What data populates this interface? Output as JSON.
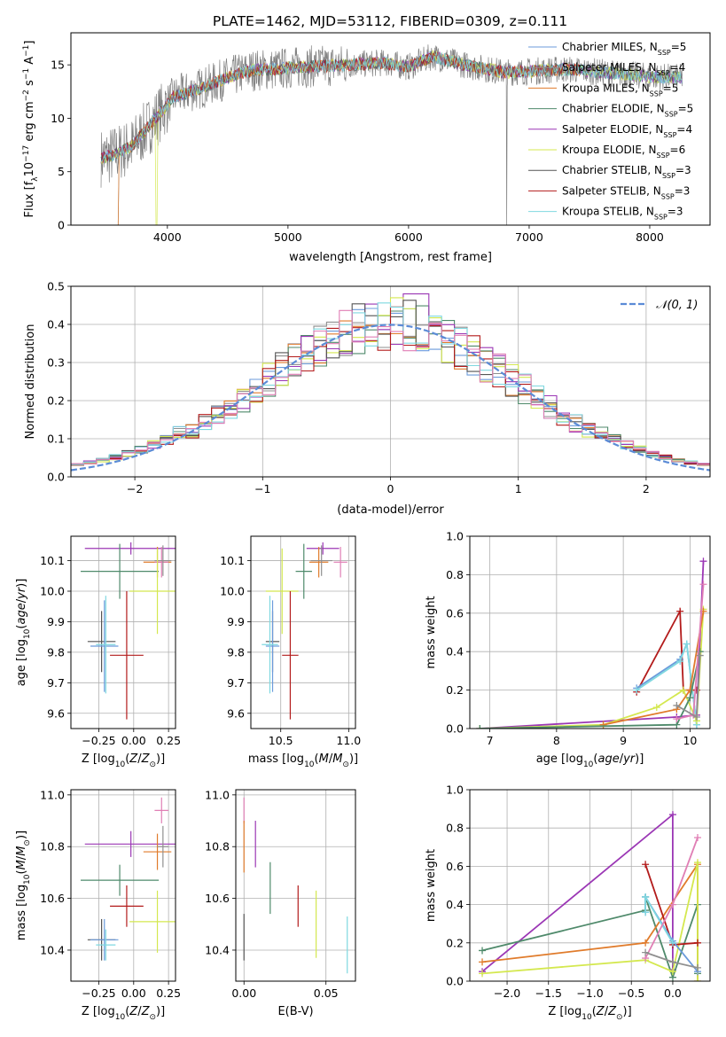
{
  "figure": {
    "title": "PLATE=1462, MJD=53112, FIBERID=0309, z=0.111"
  },
  "colors": {
    "Chabrier MILES": "#6b9bdb",
    "Salpeter MILES": "#8f8f8f",
    "Kroupa MILES": "#e07b2b",
    "Chabrier ELODIE": "#4f8a6b",
    "Salpeter ELODIE": "#9b37b5",
    "Kroupa ELODIE": "#d4e84f",
    "Chabrier STELIB": "#555555",
    "Salpeter STELIB": "#b31b1b",
    "Kroupa STELIB": "#7fd8e0",
    "pink": "#e07fb5",
    "data": "#808080",
    "gauss": "#5b8bd6"
  },
  "chart_data": [
    {
      "id": "spectrum",
      "type": "line",
      "xlabel": "wavelength [Angstrom, rest frame]",
      "ylabel": "Flux [f_λ10^-17 erg cm^-2 s^-1 A^-1]",
      "xlim": [
        3200,
        8500
      ],
      "ylim": [
        0,
        18
      ],
      "xticks": [
        4000,
        5000,
        6000,
        7000,
        8000
      ],
      "yticks": [
        0,
        5,
        10,
        15
      ],
      "continuum": {
        "x": [
          3450,
          3550,
          3700,
          3850,
          3950,
          4050,
          4300,
          4500,
          4700,
          4900,
          5100,
          5300,
          5500,
          5800,
          6000,
          6200,
          6500,
          6800,
          7000,
          7300,
          7600,
          8000,
          8300
        ],
        "y": [
          6.3,
          6.6,
          7.3,
          9.3,
          10.6,
          12.0,
          12.9,
          13.8,
          14.5,
          14.6,
          14.8,
          14.9,
          15.0,
          15.2,
          14.8,
          15.8,
          14.9,
          14.3,
          14.4,
          14.6,
          14.3,
          13.9,
          13.8
        ]
      },
      "legend_position": "upper right",
      "legend": [
        {
          "name": "Chabrier MILES",
          "nssp": "5"
        },
        {
          "name": "Salpeter MILES",
          "nssp": "4"
        },
        {
          "name": "Kroupa MILES",
          "nssp": "5"
        },
        {
          "name": "Chabrier ELODIE",
          "nssp": "5"
        },
        {
          "name": "Salpeter ELODIE",
          "nssp": "4"
        },
        {
          "name": "Kroupa ELODIE",
          "nssp": "6"
        },
        {
          "name": "Chabrier STELIB",
          "nssp": "3"
        },
        {
          "name": "Salpeter STELIB",
          "nssp": "3"
        },
        {
          "name": "Kroupa STELIB",
          "nssp": "3"
        }
      ]
    },
    {
      "id": "residuals",
      "type": "line",
      "xlabel": "(data-model)/error",
      "ylabel": "Normed distribution",
      "xlim": [
        -2.5,
        2.5
      ],
      "ylim": [
        0,
        0.5
      ],
      "xticks": [
        -2,
        -1,
        0,
        1,
        2
      ],
      "yticks": [
        0.0,
        0.1,
        0.2,
        0.3,
        0.4,
        0.5
      ],
      "grid": true,
      "bin_width": 0.1,
      "gauss_label": "𝒩(0, 1)",
      "legend_position": "upper right"
    },
    {
      "id": "age_vs_Z",
      "type": "scatter",
      "xlabel": "Z [log10(Z/Z⊙)]",
      "ylabel": "age  [log10(age/yr)]",
      "xlim": [
        -0.45,
        0.3
      ],
      "ylim": [
        9.55,
        10.18
      ],
      "xticks": [
        -0.25,
        0.0,
        0.25
      ],
      "yticks": [
        9.6,
        9.7,
        9.8,
        9.9,
        10.0,
        10.1
      ],
      "grid": true,
      "points": [
        {
          "series": "Salpeter ELODIE",
          "x": -0.02,
          "y": 10.14,
          "xerr": 0.33,
          "yerr": 0.02
        },
        {
          "series": "Chabrier ELODIE",
          "x": -0.1,
          "y": 10.065,
          "xerr": 0.28,
          "yerr": 0.09
        },
        {
          "series": "Kroupa MILES",
          "x": 0.17,
          "y": 10.095,
          "xerr": 0.1,
          "yerr": 0.05
        },
        {
          "series": "pink",
          "x": 0.2,
          "y": 10.095,
          "xerr": 0.05,
          "yerr": 0.05
        },
        {
          "series": "Salpeter MILES",
          "x": 0.21,
          "y": 10.1,
          "xerr": 0.06,
          "yerr": 0.05
        },
        {
          "series": "Kroupa ELODIE",
          "x": 0.17,
          "y": 10.0,
          "xerr": 0.2,
          "yerr": 0.14
        },
        {
          "series": "Salpeter STELIB",
          "x": -0.05,
          "y": 9.79,
          "xerr": 0.12,
          "yerr": 0.21
        },
        {
          "series": "Chabrier STELIB",
          "x": -0.23,
          "y": 9.835,
          "xerr": 0.1,
          "yerr": 0.1
        },
        {
          "series": "Chabrier MILES",
          "x": -0.21,
          "y": 9.82,
          "xerr": 0.1,
          "yerr": 0.15
        },
        {
          "series": "Kroupa STELIB",
          "x": -0.2,
          "y": 9.825,
          "xerr": 0.07,
          "yerr": 0.16
        }
      ]
    },
    {
      "id": "age_vs_mass",
      "type": "scatter",
      "xlabel": "mass [log10(M/M⊙)]",
      "ylabel": "",
      "xlim": [
        10.28,
        11.05
      ],
      "ylim": [
        9.55,
        10.18
      ],
      "xticks": [
        10.5,
        11.0
      ],
      "yticks": [
        9.6,
        9.7,
        9.8,
        9.9,
        10.0,
        10.1
      ],
      "grid": true,
      "points": [
        {
          "series": "Salpeter ELODIE",
          "x": 10.81,
          "y": 10.14,
          "xerr": 0.12,
          "yerr": 0.02
        },
        {
          "series": "Chabrier ELODIE",
          "x": 10.67,
          "y": 10.065,
          "xerr": 0.06,
          "yerr": 0.09
        },
        {
          "series": "Kroupa MILES",
          "x": 10.78,
          "y": 10.095,
          "xerr": 0.07,
          "yerr": 0.05
        },
        {
          "series": "pink",
          "x": 10.94,
          "y": 10.095,
          "xerr": 0.05,
          "yerr": 0.05
        },
        {
          "series": "Salpeter MILES",
          "x": 10.8,
          "y": 10.1,
          "xerr": 0.08,
          "yerr": 0.05
        },
        {
          "series": "Kroupa ELODIE",
          "x": 10.51,
          "y": 10.0,
          "xerr": 0.12,
          "yerr": 0.14
        },
        {
          "series": "Salpeter STELIB",
          "x": 10.57,
          "y": 9.79,
          "xerr": 0.06,
          "yerr": 0.21
        },
        {
          "series": "Chabrier STELIB",
          "x": 10.44,
          "y": 9.835,
          "xerr": 0.05,
          "yerr": 0.1
        },
        {
          "series": "Chabrier MILES",
          "x": 10.44,
          "y": 9.82,
          "xerr": 0.05,
          "yerr": 0.15
        },
        {
          "series": "Kroupa STELIB",
          "x": 10.42,
          "y": 9.825,
          "xerr": 0.06,
          "yerr": 0.16
        }
      ]
    },
    {
      "id": "weight_vs_age",
      "type": "line",
      "xlabel": "age  [log10(age/yr)]",
      "ylabel": "mass weight",
      "xlim": [
        6.7,
        10.3
      ],
      "ylim": [
        0,
        1.0
      ],
      "xticks": [
        7,
        8,
        9,
        10
      ],
      "yticks": [
        0.0,
        0.2,
        0.4,
        0.6,
        0.8,
        1.0
      ],
      "grid": true,
      "series": [
        {
          "name": "Salpeter STELIB",
          "x": [
            9.2,
            9.85,
            9.9,
            10.1
          ],
          "y": [
            0.19,
            0.61,
            0.2,
            0.2
          ]
        },
        {
          "name": "Chabrier MILES",
          "x": [
            9.2,
            9.85,
            9.95,
            10.1
          ],
          "y": [
            0.21,
            0.36,
            0.44,
            0.02
          ]
        },
        {
          "name": "Kroupa STELIB",
          "x": [
            9.2,
            9.85,
            9.95,
            10.1
          ],
          "y": [
            0.2,
            0.35,
            0.44,
            0.02
          ]
        },
        {
          "name": "Salpeter ELODIE",
          "x": [
            6.85,
            9.8,
            10.1,
            10.2
          ],
          "y": [
            0.0,
            0.06,
            0.07,
            0.87
          ]
        },
        {
          "name": "Kroupa ELODIE",
          "x": [
            6.85,
            8.7,
            9.5,
            9.9,
            10.1,
            10.2
          ],
          "y": [
            0.0,
            0.02,
            0.11,
            0.2,
            0.04,
            0.62
          ]
        },
        {
          "name": "Kroupa MILES",
          "x": [
            8.7,
            9.8,
            10.0,
            10.2
          ],
          "y": [
            0.02,
            0.1,
            0.2,
            0.61
          ]
        },
        {
          "name": "Chabrier ELODIE",
          "x": [
            6.85,
            9.8,
            10.0,
            10.15
          ],
          "y": [
            0.0,
            0.02,
            0.16,
            0.4
          ]
        },
        {
          "name": "pink",
          "x": [
            9.8,
            10.05,
            10.2
          ],
          "y": [
            0.05,
            0.07,
            0.75
          ]
        },
        {
          "name": "Salpeter MILES",
          "x": [
            9.8,
            10.1,
            10.15
          ],
          "y": [
            0.12,
            0.06,
            0.38
          ]
        }
      ]
    },
    {
      "id": "mass_vs_Z",
      "type": "scatter",
      "xlabel": "Z [log10(Z/Z⊙)]",
      "ylabel": "mass [log10(M/M⊙)]",
      "xlim": [
        -0.45,
        0.3
      ],
      "ylim": [
        10.28,
        11.02
      ],
      "xticks": [
        -0.25,
        0.0,
        0.25
      ],
      "yticks": [
        10.4,
        10.6,
        10.8,
        11.0
      ],
      "grid": true,
      "points": [
        {
          "series": "pink",
          "x": 0.2,
          "y": 10.94,
          "xerr": 0.05,
          "yerr": 0.05
        },
        {
          "series": "Salpeter ELODIE",
          "x": -0.02,
          "y": 10.81,
          "xerr": 0.33,
          "yerr": 0.05
        },
        {
          "series": "Kroupa MILES",
          "x": 0.17,
          "y": 10.78,
          "xerr": 0.1,
          "yerr": 0.07
        },
        {
          "series": "Salpeter MILES",
          "x": 0.21,
          "y": 10.8,
          "xerr": 0.04,
          "yerr": 0.08
        },
        {
          "series": "Chabrier ELODIE",
          "x": -0.1,
          "y": 10.67,
          "xerr": 0.28,
          "yerr": 0.06
        },
        {
          "series": "Salpeter STELIB",
          "x": -0.05,
          "y": 10.57,
          "xerr": 0.12,
          "yerr": 0.08
        },
        {
          "series": "Kroupa ELODIE",
          "x": 0.17,
          "y": 10.51,
          "xerr": 0.2,
          "yerr": 0.12
        },
        {
          "series": "Chabrier STELIB",
          "x": -0.23,
          "y": 10.44,
          "xerr": 0.1,
          "yerr": 0.08
        },
        {
          "series": "Chabrier MILES",
          "x": -0.21,
          "y": 10.44,
          "xerr": 0.1,
          "yerr": 0.08
        },
        {
          "series": "Kroupa STELIB",
          "x": -0.2,
          "y": 10.42,
          "xerr": 0.07,
          "yerr": 0.06
        }
      ]
    },
    {
      "id": "mass_vs_EBV",
      "type": "scatter",
      "xlabel": "E(B-V)",
      "ylabel": "",
      "xlim": [
        -0.005,
        0.068
      ],
      "ylim": [
        10.28,
        11.02
      ],
      "xticks": [
        0.0,
        0.05
      ],
      "yticks": [
        10.4,
        10.6,
        10.8,
        11.0
      ],
      "grid": true,
      "points": [
        {
          "series": "pink",
          "x": 0.0,
          "y": 10.94,
          "xerr": 0,
          "yerr": 0.05
        },
        {
          "series": "Kroupa MILES",
          "x": 0.0,
          "y": 10.8,
          "xerr": 0,
          "yerr": 0.1
        },
        {
          "series": "Chabrier STELIB",
          "x": 0.0,
          "y": 10.45,
          "xerr": 0,
          "yerr": 0.09
        },
        {
          "series": "Salpeter ELODIE",
          "x": 0.007,
          "y": 10.81,
          "xerr": 0,
          "yerr": 0.09
        },
        {
          "series": "Chabrier ELODIE",
          "x": 0.016,
          "y": 10.64,
          "xerr": 0,
          "yerr": 0.1
        },
        {
          "series": "Salpeter STELIB",
          "x": 0.033,
          "y": 10.57,
          "xerr": 0,
          "yerr": 0.08
        },
        {
          "series": "Kroupa ELODIE",
          "x": 0.044,
          "y": 10.5,
          "xerr": 0,
          "yerr": 0.13
        },
        {
          "series": "Kroupa STELIB",
          "x": 0.063,
          "y": 10.42,
          "xerr": 0,
          "yerr": 0.11
        }
      ]
    },
    {
      "id": "weight_vs_Z",
      "type": "line",
      "xlabel": "Z [log10(Z/Z⊙)]",
      "ylabel": "mass weight",
      "xlim": [
        -2.45,
        0.45
      ],
      "ylim": [
        0,
        1.0
      ],
      "xticks": [
        -2.0,
        -1.5,
        -1.0,
        -0.5,
        0.0
      ],
      "yticks": [
        0.0,
        0.2,
        0.4,
        0.6,
        0.8,
        1.0
      ],
      "grid": true,
      "series": [
        {
          "name": "Salpeter ELODIE",
          "x": [
            -2.3,
            0.0,
            0.0
          ],
          "y": [
            0.05,
            0.87,
            0.06
          ]
        },
        {
          "name": "Chabrier ELODIE",
          "x": [
            -2.3,
            -0.33,
            -0.33,
            0.0,
            0.3,
            0.3
          ],
          "y": [
            0.16,
            0.37,
            0.44,
            0.02,
            0.4,
            0.04
          ]
        },
        {
          "name": "Kroupa MILES",
          "x": [
            -2.3,
            -0.33,
            0.3,
            0.3
          ],
          "y": [
            0.1,
            0.2,
            0.61,
            0.0
          ]
        },
        {
          "name": "Kroupa ELODIE",
          "x": [
            -2.3,
            -0.33,
            0.0,
            0.3,
            0.3
          ],
          "y": [
            0.04,
            0.11,
            0.05,
            0.62,
            0.0
          ]
        },
        {
          "name": "Salpeter STELIB",
          "x": [
            -0.33,
            0.0,
            0.3
          ],
          "y": [
            0.61,
            0.19,
            0.2
          ]
        },
        {
          "name": "Chabrier MILES",
          "x": [
            -0.33,
            -0.33,
            0.0,
            0.3
          ],
          "y": [
            0.36,
            0.44,
            0.21,
            0.05
          ]
        },
        {
          "name": "Kroupa STELIB",
          "x": [
            -0.33,
            -0.33,
            0.0
          ],
          "y": [
            0.36,
            0.44,
            0.2
          ]
        },
        {
          "name": "pink",
          "x": [
            -0.33,
            0.0,
            0.3
          ],
          "y": [
            0.12,
            0.4,
            0.75
          ]
        },
        {
          "name": "Salpeter MILES",
          "x": [
            -0.33,
            0.0,
            0.3
          ],
          "y": [
            0.15,
            0.1,
            0.07
          ]
        }
      ]
    }
  ]
}
